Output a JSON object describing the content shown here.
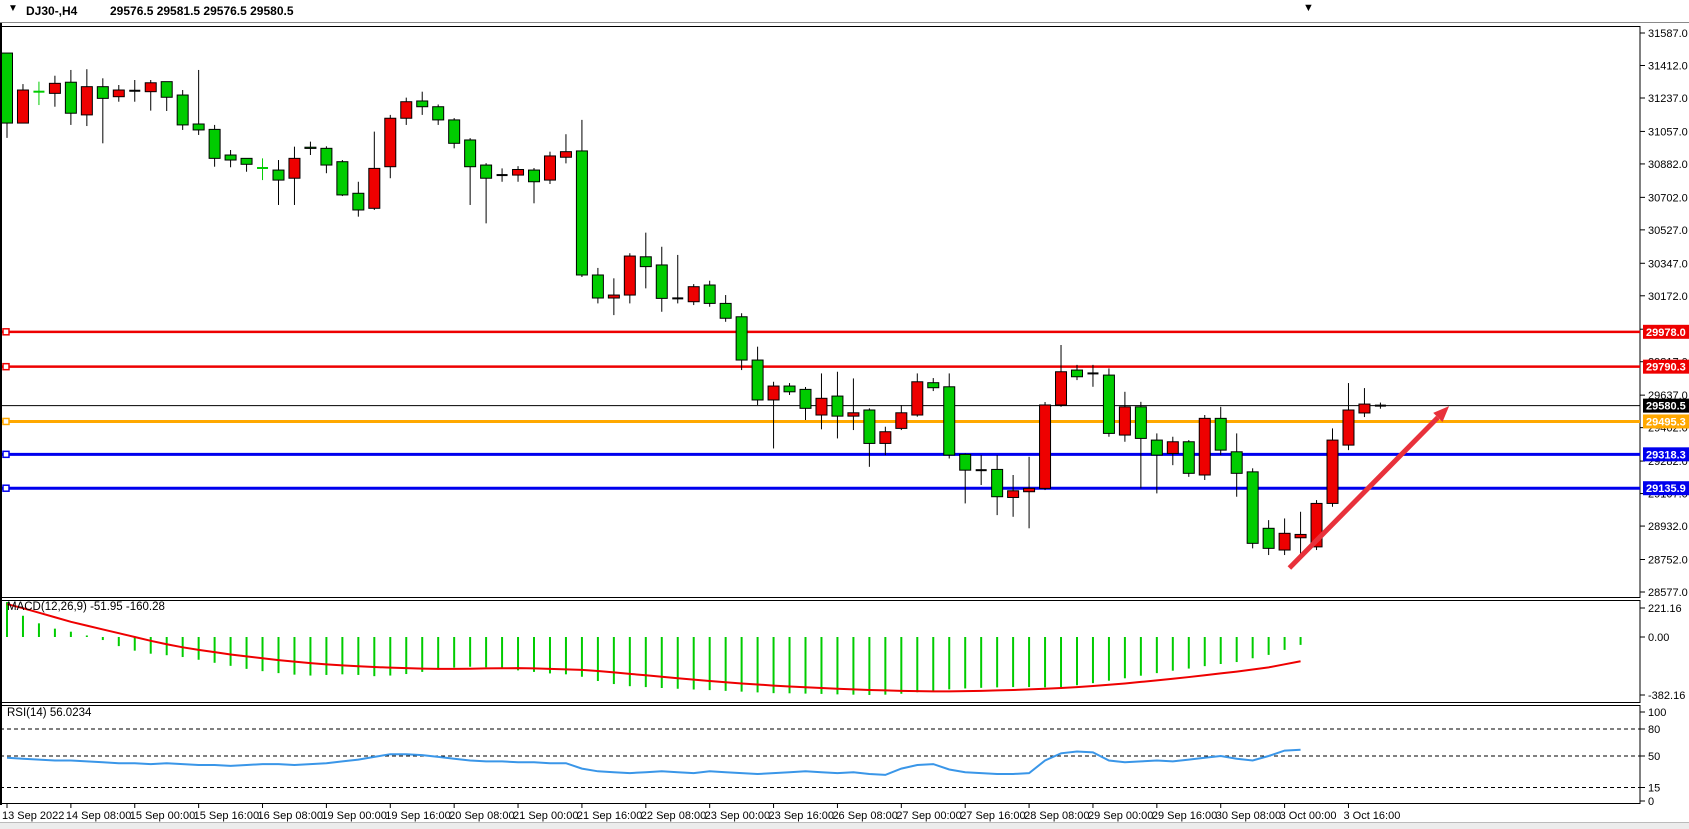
{
  "header": {
    "symbol": "DJ30-,H4",
    "ohlc": "29576.5 29581.5 29576.5 29580.5",
    "dropdown_glyph": "▼",
    "shift_glyph": "▼"
  },
  "indicators": {
    "macd_label": "MACD(12,26,9) -51.95 -160.28",
    "rsi_label": "RSI(14) 56.0234"
  },
  "price_axis": {
    "ticks": [
      31587,
      31412,
      31237,
      31057,
      30882,
      30702,
      30527,
      30347,
      30172,
      29992,
      29817,
      29637,
      29462,
      29282,
      29107,
      28932,
      28752,
      28577
    ]
  },
  "macd_axis": {
    "ticks": [
      221.16,
      0.0,
      -382.16
    ]
  },
  "rsi_axis": {
    "ticks": [
      100,
      80,
      50,
      15,
      0
    ],
    "dashed_levels": [
      80,
      50,
      15
    ]
  },
  "time_axis": {
    "labels": [
      "13 Sep 2022",
      "14 Sep 08:00",
      "15 Sep 00:00",
      "15 Sep 16:00",
      "16 Sep 08:00",
      "19 Sep 00:00",
      "19 Sep 16:00",
      "20 Sep 08:00",
      "21 Sep 00:00",
      "21 Sep 16:00",
      "22 Sep 08:00",
      "23 Sep 00:00",
      "23 Sep 16:00",
      "26 Sep 08:00",
      "27 Sep 00:00",
      "27 Sep 16:00",
      "28 Sep 08:00",
      "29 Sep 00:00",
      "29 Sep 16:00",
      "30 Sep 08:00",
      "3 Oct 00:00",
      "3 Oct 16:00"
    ]
  },
  "chart_data": {
    "type": "candlestick",
    "symbol": "DJ30-,H4",
    "timeframe": "H4",
    "colors": {
      "bull": "#00cc00",
      "bear": "#ee0000",
      "doji": "#000000",
      "macd_bar": "#00cc00",
      "macd_signal": "#ee0000",
      "rsi_line": "#3a96e8",
      "arrow": "#e8313b"
    },
    "candles": [
      [
        31102,
        31479,
        31022,
        31479,
        "g"
      ],
      [
        31280,
        31312,
        31102,
        31102,
        "r"
      ],
      [
        31271,
        31325,
        31199,
        31271,
        "gd"
      ],
      [
        31316,
        31357,
        31190,
        31262,
        "r"
      ],
      [
        31155,
        31388,
        31092,
        31322,
        "g"
      ],
      [
        31298,
        31392,
        31086,
        31146,
        "r"
      ],
      [
        31235,
        31343,
        30993,
        31298,
        "g"
      ],
      [
        31280,
        31307,
        31217,
        31244,
        "r"
      ],
      [
        31276,
        31334,
        31217,
        31276,
        "k"
      ],
      [
        31319,
        31334,
        31169,
        31271,
        "r"
      ],
      [
        31241,
        31325,
        31167,
        31325,
        "g"
      ],
      [
        31092,
        31280,
        31065,
        31253,
        "g"
      ],
      [
        31065,
        31388,
        31038,
        31097,
        "g"
      ],
      [
        30912,
        31092,
        30867,
        31068,
        "g"
      ],
      [
        30903,
        30957,
        30864,
        30930,
        "g"
      ],
      [
        30880,
        30912,
        30840,
        30912,
        "g"
      ],
      [
        30860,
        30912,
        30795,
        30860,
        "gd"
      ],
      [
        30795,
        30903,
        30661,
        30849,
        "g"
      ],
      [
        30912,
        30975,
        30661,
        30805,
        "r"
      ],
      [
        30968,
        31002,
        30930,
        30972,
        "g"
      ],
      [
        30876,
        30977,
        30832,
        30966,
        "g"
      ],
      [
        30715,
        30903,
        30709,
        30894,
        "g"
      ],
      [
        30634,
        30786,
        30598,
        30724,
        "g"
      ],
      [
        30858,
        31056,
        30634,
        30643,
        "r"
      ],
      [
        31128,
        31146,
        30805,
        30867,
        "r"
      ],
      [
        31217,
        31239,
        31092,
        31128,
        "r"
      ],
      [
        31190,
        31271,
        31146,
        31221,
        "g"
      ],
      [
        31119,
        31202,
        31092,
        31190,
        "g"
      ],
      [
        30993,
        31129,
        30966,
        31119,
        "g"
      ],
      [
        30867,
        31021,
        30661,
        31011,
        "g"
      ],
      [
        30805,
        30886,
        30562,
        30876,
        "g"
      ],
      [
        30822,
        30858,
        30786,
        30822,
        "k"
      ],
      [
        30852,
        30870,
        30786,
        30822,
        "r"
      ],
      [
        30786,
        30860,
        30670,
        30849,
        "g"
      ],
      [
        30925,
        30948,
        30774,
        30795,
        "r"
      ],
      [
        30948,
        31042,
        30885,
        30918,
        "r"
      ],
      [
        30284,
        31119,
        30273,
        30952,
        "g"
      ],
      [
        30160,
        30322,
        30131,
        30284,
        "g"
      ],
      [
        30176,
        30266,
        30068,
        30160,
        "r"
      ],
      [
        30386,
        30401,
        30131,
        30176,
        "r"
      ],
      [
        30329,
        30512,
        30212,
        30382,
        "g"
      ],
      [
        30158,
        30436,
        30086,
        30338,
        "g"
      ],
      [
        30158,
        30392,
        30131,
        30158,
        "k"
      ],
      [
        30221,
        30235,
        30122,
        30140,
        "r"
      ],
      [
        30131,
        30253,
        30113,
        30230,
        "g"
      ],
      [
        30051,
        30176,
        30032,
        30131,
        "g"
      ],
      [
        29826,
        30078,
        29772,
        30059,
        "g"
      ],
      [
        29611,
        29898,
        29584,
        29826,
        "g"
      ],
      [
        29686,
        29709,
        29350,
        29611,
        "r"
      ],
      [
        29655,
        29702,
        29638,
        29686,
        "g"
      ],
      [
        29566,
        29681,
        29503,
        29668,
        "g"
      ],
      [
        29620,
        29754,
        29453,
        29530,
        "r"
      ],
      [
        29524,
        29763,
        29404,
        29632,
        "g"
      ],
      [
        29542,
        29727,
        29449,
        29524,
        "r"
      ],
      [
        29377,
        29566,
        29251,
        29557,
        "g"
      ],
      [
        29440,
        29467,
        29314,
        29377,
        "r"
      ],
      [
        29542,
        29584,
        29449,
        29458,
        "r"
      ],
      [
        29709,
        29754,
        29521,
        29530,
        "r"
      ],
      [
        29677,
        29729,
        29659,
        29704,
        "g"
      ],
      [
        29314,
        29754,
        29296,
        29682,
        "g"
      ],
      [
        29233,
        29323,
        29054,
        29318,
        "g"
      ],
      [
        29233,
        29314,
        29153,
        29233,
        "k"
      ],
      [
        29090,
        29314,
        28991,
        29237,
        "g"
      ],
      [
        29122,
        29207,
        28982,
        29086,
        "r"
      ],
      [
        29135,
        29305,
        28920,
        29117,
        "r"
      ],
      [
        29584,
        29600,
        29126,
        29135,
        "r"
      ],
      [
        29763,
        29907,
        29574,
        29584,
        "r"
      ],
      [
        29736,
        29800,
        29718,
        29772,
        "g"
      ],
      [
        29754,
        29800,
        29682,
        29754,
        "k"
      ],
      [
        29431,
        29781,
        29413,
        29745,
        "g"
      ],
      [
        29574,
        29655,
        29386,
        29422,
        "r"
      ],
      [
        29404,
        29601,
        29135,
        29574,
        "g"
      ],
      [
        29314,
        29431,
        29108,
        29395,
        "g"
      ],
      [
        29386,
        29413,
        29260,
        29323,
        "r"
      ],
      [
        29216,
        29395,
        29197,
        29386,
        "g"
      ],
      [
        29512,
        29530,
        29180,
        29207,
        "r"
      ],
      [
        29341,
        29574,
        29314,
        29512,
        "g"
      ],
      [
        29216,
        29431,
        29090,
        29332,
        "g"
      ],
      [
        28839,
        29243,
        28812,
        29224,
        "g"
      ],
      [
        28812,
        28964,
        28776,
        28920,
        "g"
      ],
      [
        28893,
        28973,
        28776,
        28803,
        "r"
      ],
      [
        28887,
        29009,
        28776,
        28869,
        "r"
      ],
      [
        29054,
        29072,
        28803,
        28820,
        "r"
      ],
      [
        29395,
        29458,
        29036,
        29054,
        "r"
      ],
      [
        29557,
        29702,
        29341,
        29368,
        "r"
      ],
      [
        29589,
        29675,
        29519,
        29541,
        "r"
      ],
      [
        29580.5,
        29597,
        29564,
        29580.5,
        "k"
      ]
    ],
    "hlines": [
      {
        "price": 29978.0,
        "label": "29978.0",
        "color": "#ee0000",
        "width": 2.5
      },
      {
        "price": 29790.3,
        "label": "29790.3",
        "color": "#ee0000",
        "width": 2.5
      },
      {
        "price": 29495.3,
        "label": "29495.3",
        "color": "#ffa800",
        "width": 3
      },
      {
        "price": 29318.3,
        "label": "29318.3",
        "color": "#0000ee",
        "width": 3
      },
      {
        "price": 29135.9,
        "label": "29135.9",
        "color": "#0000ee",
        "width": 3
      }
    ],
    "current_price": {
      "price": 29580.5,
      "label": "29580.5",
      "color": "#000000"
    },
    "macd": {
      "histogram": [
        230,
        140,
        90,
        55,
        35,
        10,
        -20,
        -60,
        -90,
        -110,
        -120,
        -132,
        -150,
        -170,
        -190,
        -210,
        -225,
        -238,
        -248,
        -254,
        -250,
        -246,
        -250,
        -258,
        -254,
        -244,
        -230,
        -215,
        -202,
        -196,
        -200,
        -210,
        -220,
        -230,
        -240,
        -246,
        -262,
        -290,
        -310,
        -324,
        -330,
        -336,
        -341,
        -346,
        -350,
        -355,
        -360,
        -365,
        -370,
        -371,
        -373,
        -375,
        -378,
        -380,
        -382,
        -380,
        -374,
        -364,
        -354,
        -345,
        -339,
        -335,
        -332,
        -330,
        -330,
        -332,
        -330,
        -318,
        -304,
        -288,
        -272,
        -255,
        -238,
        -222,
        -208,
        -192,
        -178,
        -165,
        -140,
        -118,
        -85,
        -52
      ],
      "signal": [
        217,
        190,
        160,
        130,
        100,
        75,
        50,
        25,
        0,
        -25,
        -48,
        -68,
        -85,
        -100,
        -115,
        -128,
        -140,
        -152,
        -162,
        -172,
        -180,
        -187,
        -193,
        -198,
        -202,
        -205,
        -208,
        -210,
        -210,
        -209,
        -207,
        -206,
        -205,
        -207,
        -210,
        -213,
        -217,
        -224,
        -233,
        -243,
        -252,
        -262,
        -272,
        -281,
        -290,
        -298,
        -306,
        -313,
        -320,
        -326,
        -331,
        -336,
        -341,
        -345,
        -349,
        -352,
        -355,
        -357,
        -358,
        -358,
        -357,
        -355,
        -352,
        -349,
        -345,
        -341,
        -336,
        -330,
        -323,
        -315,
        -306,
        -296,
        -286,
        -275,
        -264,
        -252,
        -240,
        -228,
        -214,
        -200,
        -180,
        -160
      ],
      "current_macd": -51.95,
      "current_signal": -160.28
    },
    "rsi": {
      "values": [
        48,
        47,
        46,
        45,
        45,
        44,
        43,
        42,
        42,
        41,
        42,
        41,
        40,
        40,
        39,
        40,
        41,
        41,
        40,
        41,
        42,
        44,
        46,
        49,
        52,
        52,
        51,
        49,
        47,
        45,
        44,
        44,
        43,
        43,
        42,
        42,
        36,
        33,
        32,
        31,
        32,
        33,
        32,
        31,
        33,
        32,
        31,
        30,
        31,
        32,
        33,
        32,
        31,
        32,
        30,
        29,
        36,
        40,
        41,
        35,
        32,
        31,
        30,
        30,
        31,
        45,
        53,
        55,
        54,
        45,
        43,
        44,
        45,
        44,
        46,
        48,
        50,
        47,
        45,
        50,
        56,
        57
      ],
      "current": 56.0234
    },
    "arrow": {
      "start": {
        "bar": 80.3,
        "price": 28706
      },
      "end": {
        "bar": 90.3,
        "price": 29578
      }
    }
  }
}
